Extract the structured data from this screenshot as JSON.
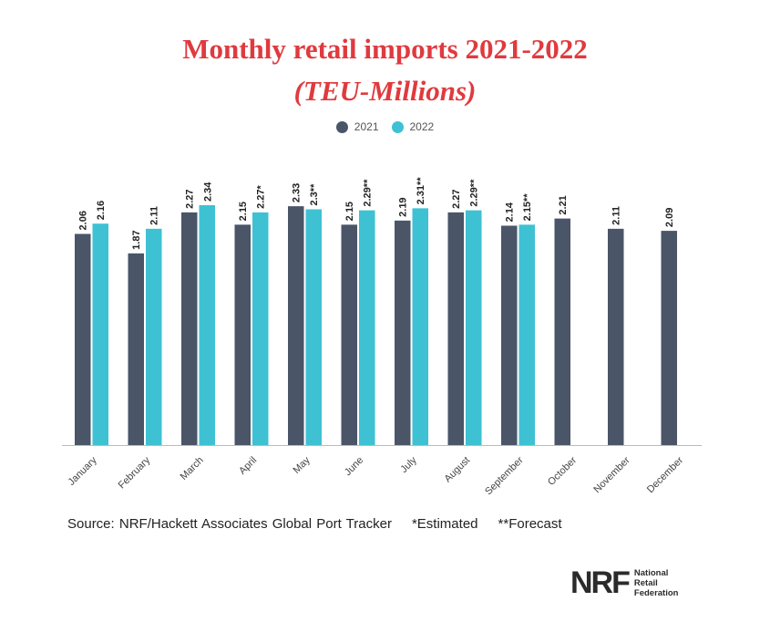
{
  "title": "Monthly retail imports 2021-2022",
  "subtitle": "(TEU-Millions)",
  "legend": {
    "s2021": "2021",
    "s2022": "2022"
  },
  "source": {
    "text": "Source: NRF/Hackett Associates Global Port Tracker",
    "estimated": "*Estimated",
    "forecast": "**Forecast"
  },
  "logo": {
    "mark": "NRF",
    "line1": "National",
    "line2": "Retail",
    "line3": "Federation"
  },
  "colors": {
    "s2021": "#4a5568",
    "s2022": "#3ec1d3",
    "title": "#e03a3e"
  },
  "chart_data": {
    "type": "bar",
    "title": "Monthly retail imports 2021-2022",
    "subtitle": "(TEU-Millions)",
    "xlabel": "",
    "ylabel": "",
    "ylim": [
      0,
      2.34
    ],
    "legend_position": "top-center",
    "categories": [
      "January",
      "February",
      "March",
      "April",
      "May",
      "June",
      "July",
      "August",
      "September",
      "October",
      "November",
      "December"
    ],
    "series": [
      {
        "name": "2021",
        "values": [
          2.06,
          1.87,
          2.27,
          2.15,
          2.33,
          2.15,
          2.19,
          2.27,
          2.14,
          2.21,
          2.11,
          2.09
        ],
        "labels": [
          "2.06",
          "1.87",
          "2.27",
          "2.15",
          "2.33",
          "2.15",
          "2.19",
          "2.27",
          "2.14",
          "2.21",
          "2.11",
          "2.09"
        ]
      },
      {
        "name": "2022",
        "values": [
          2.16,
          2.11,
          2.34,
          2.27,
          2.3,
          2.29,
          2.31,
          2.29,
          2.15,
          null,
          null,
          null
        ],
        "labels": [
          "2.16",
          "2.11",
          "2.34",
          "2.27*",
          "2.3**",
          "2.29**",
          "2.31**",
          "2.29**",
          "2.15**",
          null,
          null,
          null
        ]
      }
    ]
  }
}
